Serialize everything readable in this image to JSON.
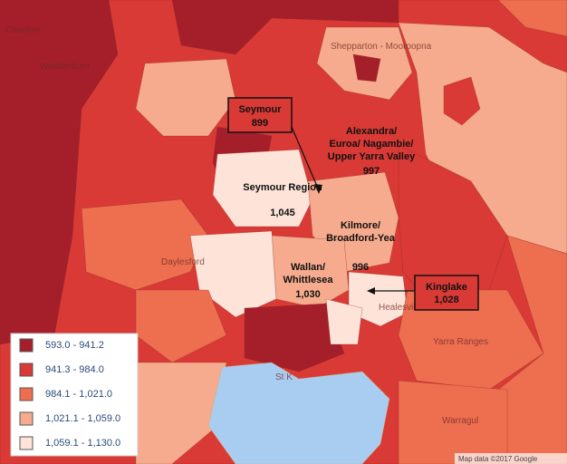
{
  "map": {
    "place_labels": [
      "Charlton",
      "Wedderburn",
      "Shepparton - Mooroopna",
      "Daylesford",
      "Healesville",
      "Yarra Ranges",
      "St K",
      "Warragul"
    ],
    "annotations": [
      {
        "name": "Seymour",
        "value": "899"
      },
      {
        "name": "Alexandra/ Euroa/ Nagambie/ Upper Yarra Valley",
        "value": "997"
      },
      {
        "name": "Seymour Region",
        "value": "1,045"
      },
      {
        "name": "Kilmore/ Broadford-Yea",
        "value": "996"
      },
      {
        "name": "Wallan/ Whittlesea",
        "value": "1,030"
      },
      {
        "name": "Kinglake",
        "value": "1,028"
      }
    ],
    "legend": [
      {
        "label": "593.0 - 941.2",
        "color": "#a51f2b"
      },
      {
        "label": "941.3 - 984.0",
        "color": "#d93a36"
      },
      {
        "label": "984.1 - 1,021.0",
        "color": "#ee6e50"
      },
      {
        "label": "1,021.1 - 1,059.0",
        "color": "#f6ab8e"
      },
      {
        "label": "1,059.1 - 1,130.0",
        "color": "#fde3d8"
      }
    ],
    "attribution": "Map data ©2017 Google"
  }
}
